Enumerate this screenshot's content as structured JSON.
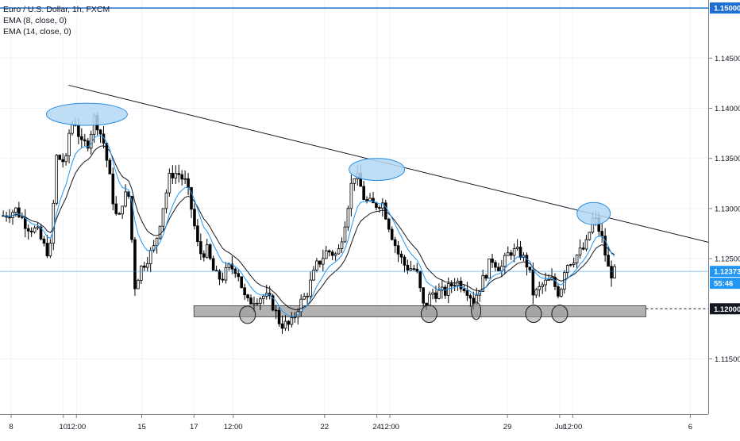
{
  "legend": {
    "symbol": "Euro / U.S. Dollar, 1h, FXCM",
    "ema1": "EMA (8, close, 0)",
    "ema2": "EMA (14, close, 0)"
  },
  "price_labels": {
    "upper_line": "1.15000",
    "current": "1.12373",
    "countdown": "55:46",
    "support": "1.12000"
  },
  "colors": {
    "candle": "#000000",
    "ema_fast": "#2196f3",
    "ema_slow": "#131722",
    "highlight_fill": "#b3d7f5",
    "highlight_stroke": "#2a8de0",
    "support_zone": "#b2b2b2",
    "horizontal_line": "#1e6fd1",
    "current_price": "#2196f3"
  },
  "chart_data": {
    "type": "candlestick",
    "instrument": "Euro / U.S. Dollar",
    "timeframe": "1h",
    "source": "FXCM",
    "y_ticks": [
      "1.14500",
      "1.14000",
      "1.13500",
      "1.13000",
      "1.12500",
      "1.11500"
    ],
    "x_ticks": [
      {
        "label": "8",
        "t": 0
      },
      {
        "label": "10",
        "t": 2
      },
      {
        "label": "12:00",
        "t": 2.5
      },
      {
        "label": "15",
        "t": 5
      },
      {
        "label": "17",
        "t": 7
      },
      {
        "label": "12:00",
        "t": 8.5
      },
      {
        "label": "22",
        "t": 12
      },
      {
        "label": "24",
        "t": 14
      },
      {
        "label": "12:00",
        "t": 14.5
      },
      {
        "label": "29",
        "t": 19
      },
      {
        "label": "Jul",
        "t": 21
      },
      {
        "label": "12:00",
        "t": 21.5
      },
      {
        "label": "6",
        "t": 26
      }
    ],
    "ylim": [
      1.1095,
      1.1508
    ],
    "price_path": [
      [
        -0.3,
        1.1293
      ],
      [
        0.2,
        1.1299
      ],
      [
        0.6,
        1.1283
      ],
      [
        1.0,
        1.1277
      ],
      [
        1.35,
        1.1257
      ],
      [
        1.55,
        1.1262
      ],
      [
        1.7,
        1.1352
      ],
      [
        1.95,
        1.1348
      ],
      [
        2.1,
        1.1347
      ],
      [
        2.25,
        1.1382
      ],
      [
        2.45,
        1.1387
      ],
      [
        2.7,
        1.1363
      ],
      [
        2.95,
        1.1366
      ],
      [
        3.2,
        1.1392
      ],
      [
        3.55,
        1.1365
      ],
      [
        3.75,
        1.1335
      ],
      [
        3.95,
        1.13
      ],
      [
        4.1,
        1.1285
      ],
      [
        4.3,
        1.1313
      ],
      [
        4.55,
        1.1312
      ],
      [
        4.7,
        1.122
      ],
      [
        4.95,
        1.124
      ],
      [
        5.2,
        1.125
      ],
      [
        5.5,
        1.1262
      ],
      [
        5.8,
        1.13
      ],
      [
        6.1,
        1.1335
      ],
      [
        6.4,
        1.1335
      ],
      [
        6.7,
        1.1325
      ],
      [
        6.9,
        1.13
      ],
      [
        7.2,
        1.1255
      ],
      [
        7.5,
        1.1258
      ],
      [
        7.8,
        1.1233
      ],
      [
        8.05,
        1.123
      ],
      [
        8.35,
        1.1241
      ],
      [
        8.65,
        1.124
      ],
      [
        9.0,
        1.1205
      ],
      [
        9.3,
        1.121
      ],
      [
        9.7,
        1.1213
      ],
      [
        10.0,
        1.1205
      ],
      [
        10.3,
        1.1185
      ],
      [
        10.7,
        1.1183
      ],
      [
        11.0,
        1.1203
      ],
      [
        11.3,
        1.1214
      ],
      [
        11.7,
        1.1243
      ],
      [
        12.1,
        1.1258
      ],
      [
        12.5,
        1.1253
      ],
      [
        12.8,
        1.129
      ],
      [
        13.1,
        1.1335
      ],
      [
        13.3,
        1.1328
      ],
      [
        13.55,
        1.1307
      ],
      [
        13.9,
        1.1303
      ],
      [
        14.2,
        1.1307
      ],
      [
        14.5,
        1.128
      ],
      [
        14.8,
        1.1256
      ],
      [
        15.1,
        1.1242
      ],
      [
        15.5,
        1.1239
      ],
      [
        15.8,
        1.12
      ],
      [
        16.1,
        1.1216
      ],
      [
        16.6,
        1.1216
      ],
      [
        17.0,
        1.1228
      ],
      [
        17.4,
        1.1222
      ],
      [
        17.7,
        1.1208
      ],
      [
        18.0,
        1.1225
      ],
      [
        18.4,
        1.125
      ],
      [
        18.75,
        1.124
      ],
      [
        19.1,
        1.1258
      ],
      [
        19.5,
        1.1255
      ],
      [
        19.8,
        1.1242
      ],
      [
        20.0,
        1.1213
      ],
      [
        20.4,
        1.1225
      ],
      [
        20.7,
        1.1228
      ],
      [
        21.0,
        1.1214
      ],
      [
        21.2,
        1.1243
      ],
      [
        21.6,
        1.1252
      ],
      [
        22.0,
        1.1262
      ],
      [
        22.3,
        1.1293
      ],
      [
        22.6,
        1.1272
      ],
      [
        22.9,
        1.1235
      ],
      [
        23.2,
        1.1237
      ]
    ],
    "annotations": {
      "trendline": {
        "from": [
          2.2,
          1.1423
        ],
        "to": [
          26.9,
          1.1265
        ]
      },
      "upper_horizontal_line": 1.15,
      "current_price_line": 1.12373,
      "support_dashed_line": 1.12,
      "support_zone": {
        "t_start": 7.0,
        "t_end": 24.3,
        "low": 1.1192,
        "high": 1.1203
      },
      "highlighted_tops": [
        {
          "t": 2.9,
          "price": 1.1394
        },
        {
          "t": 14.0,
          "price": 1.1339
        },
        {
          "t": 22.3,
          "price": 1.1295
        }
      ],
      "highlighted_bottoms": [
        {
          "t": 9.05,
          "price": 1.1194
        },
        {
          "t": 16.0,
          "price": 1.1195
        },
        {
          "t": 17.8,
          "price": 1.1198
        },
        {
          "t": 20.0,
          "price": 1.1195
        },
        {
          "t": 21.0,
          "price": 1.1195
        }
      ]
    }
  }
}
